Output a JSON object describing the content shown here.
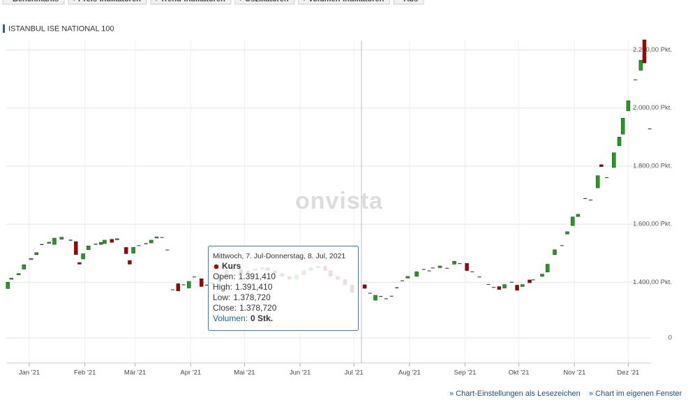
{
  "toolbar": [
    "Benchmarks",
    "Preis-Indikatoren",
    "Trend-Indikatoren",
    "Oszillatoren",
    "Volumen-Indikatoren",
    "Abs"
  ],
  "chart_data": {
    "type": "candlestick",
    "title": "ISTANBUL ISE NATIONAL 100",
    "watermark": "onvista",
    "up_color": "#1e9e1e",
    "down_color": "#a50000",
    "grid": true,
    "x": [
      -12,
      -10,
      -6,
      -3,
      1,
      4,
      7,
      11,
      14,
      18,
      23,
      26,
      28,
      30,
      33,
      37,
      40,
      42,
      46,
      49,
      54,
      56,
      58,
      61,
      65,
      68,
      71,
      74,
      77,
      80,
      83,
      86,
      89,
      92,
      96,
      99,
      102,
      106,
      110,
      114,
      118,
      122,
      126,
      130,
      133,
      137,
      141,
      145,
      149,
      153,
      157,
      161,
      165,
      168,
      172,
      176,
      180,
      187,
      190,
      193,
      196,
      199,
      202,
      205,
      208,
      211,
      216,
      220,
      223,
      225,
      229,
      233,
      237,
      240,
      244,
      247,
      251,
      256,
      259,
      262,
      265,
      269,
      272,
      275,
      279,
      281,
      286,
      289,
      293,
      297,
      300,
      303,
      306,
      310,
      313,
      317,
      319,
      322,
      326,
      329,
      331,
      334,
      338,
      341,
      343,
      346
    ],
    "open": [
      1378,
      1410,
      1425,
      1445,
      1478,
      1495,
      1527,
      1534,
      1530,
      1548,
      1545,
      1540,
      1468,
      1480,
      1512,
      1528,
      1530,
      1533,
      1548,
      1546,
      1520,
      1475,
      1500,
      1524,
      1530,
      1535,
      1552,
      1554,
      1511,
      1374,
      1395,
      1390,
      1380,
      1416,
      1412,
      1388,
      1390,
      1400,
      1420,
      1440,
      1445,
      1430,
      1440,
      1445,
      1450,
      1440,
      1430,
      1420,
      1410,
      1425,
      1440,
      1450,
      1455,
      1440,
      1420,
      1410,
      1390,
      1391.41,
      1361,
      1338,
      1350,
      1342,
      1350,
      1378,
      1403,
      1414,
      1420,
      1442,
      1437,
      1447,
      1450,
      1448,
      1462,
      1464,
      1465,
      1436,
      1418,
      1392,
      1382,
      1385,
      1380,
      1399,
      1390,
      1385,
      1408,
      1407,
      1420,
      1435,
      1495,
      1524,
      1566,
      1595,
      1626,
      1688,
      1683,
      1725,
      1805,
      1760,
      1795,
      1870,
      1910,
      1990,
      2097,
      2130,
      2235,
      1928
    ],
    "close": [
      1400,
      1414,
      1430,
      1460,
      1482,
      1502,
      1530,
      1538,
      1552,
      1555,
      1542,
      1495,
      1462,
      1498,
      1525,
      1531,
      1537,
      1545,
      1537,
      1550,
      1498,
      1462,
      1520,
      1526,
      1533,
      1545,
      1556,
      1553,
      1510,
      1373,
      1370,
      1391,
      1403,
      1418,
      1385,
      1390,
      1400,
      1420,
      1440,
      1445,
      1430,
      1440,
      1445,
      1450,
      1440,
      1430,
      1420,
      1410,
      1425,
      1440,
      1450,
      1455,
      1440,
      1420,
      1410,
      1390,
      1365,
      1378.72,
      1362,
      1355,
      1351,
      1343,
      1352,
      1381,
      1405,
      1420,
      1436,
      1444,
      1439,
      1449,
      1456,
      1446,
      1472,
      1463,
      1440,
      1435,
      1417,
      1391,
      1381,
      1375,
      1392,
      1400,
      1372,
      1392,
      1398,
      1408,
      1428,
      1462,
      1512,
      1526,
      1574,
      1625,
      1634,
      1687,
      1682,
      1767,
      1798,
      1759,
      1846,
      1900,
      1965,
      2025,
      2095,
      2165,
      2155,
      1927
    ],
    "xlim": [
      -14,
      348
    ],
    "xticks": [
      {
        "value": 0,
        "label": "Jan '21"
      },
      {
        "value": 31,
        "label": "Feb '21"
      },
      {
        "value": 59,
        "label": "Mär '21"
      },
      {
        "value": 90,
        "label": "Apr '21"
      },
      {
        "value": 120,
        "label": "Mai '21"
      },
      {
        "value": 151,
        "label": "Jun '21"
      },
      {
        "value": 181,
        "label": "Jul '21"
      },
      {
        "value": 212,
        "label": "Aug '21"
      },
      {
        "value": 243,
        "label": "Sep '21"
      },
      {
        "value": 273,
        "label": "Okt '21"
      },
      {
        "value": 304,
        "label": "Nov '21"
      },
      {
        "value": 334,
        "label": "Dez '21"
      }
    ],
    "ylim": [
      1290,
      2235
    ],
    "yticks": [
      {
        "value": 1400,
        "label": "1.400,00 Pkt."
      },
      {
        "value": 1600,
        "label": "1.600,00 Pkt."
      },
      {
        "value": 1800,
        "label": "1.800,00 Pkt."
      },
      {
        "value": 2000,
        "label": "2.000,00 Pkt."
      },
      {
        "value": 2200,
        "label": "2.200,00 Pkt."
      }
    ],
    "y2ticks": [
      0
    ]
  },
  "tooltip": {
    "date": "Mittwoch, 7. Jul-Donnerstag, 8. Jul, 2021",
    "series": "Kurs",
    "rows": [
      {
        "label": "Open:",
        "value": "1.391,410"
      },
      {
        "label": "High:",
        "value": "1.391,410"
      },
      {
        "label": "Low:",
        "value": "1.378,720"
      },
      {
        "label": "Close:",
        "value": "1.378,720"
      }
    ],
    "volume_label": "Volumen:",
    "volume_value": "0 Stk."
  },
  "links": [
    "» Chart-Einstellungen als Lesezeichen",
    "» Chart im eigenen Fenster"
  ]
}
